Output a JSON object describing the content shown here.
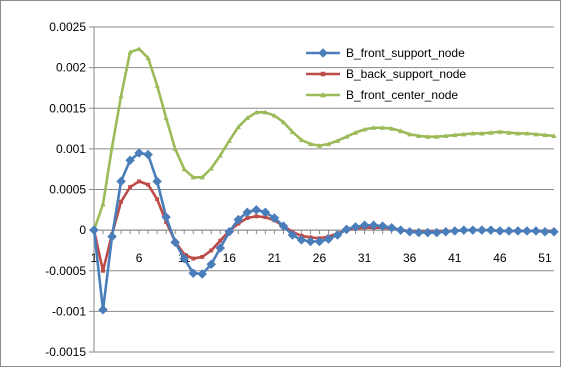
{
  "chart_data": {
    "type": "line",
    "title": "",
    "xlabel": "",
    "ylabel": "",
    "x": [
      1,
      2,
      3,
      4,
      5,
      6,
      7,
      8,
      9,
      10,
      11,
      12,
      13,
      14,
      15,
      16,
      17,
      18,
      19,
      20,
      21,
      22,
      23,
      24,
      25,
      26,
      27,
      28,
      29,
      30,
      31,
      32,
      33,
      34,
      35,
      36,
      37,
      38,
      39,
      40,
      41,
      42,
      43,
      44,
      45,
      46,
      47,
      48,
      49,
      50,
      51,
      52
    ],
    "xticks": [
      1,
      6,
      11,
      16,
      21,
      26,
      31,
      36,
      41,
      46,
      51
    ],
    "xtick_labels": [
      "1",
      "6",
      "11",
      "16",
      "21",
      "26",
      "31",
      "36",
      "41",
      "46",
      "51"
    ],
    "ylim": [
      -0.0015,
      0.0025
    ],
    "yticks": [
      -0.0015,
      -0.001,
      -0.0005,
      0,
      0.0005,
      0.001,
      0.0015,
      0.002,
      0.0025
    ],
    "ytick_labels": [
      "-0.0015",
      "-0.001",
      "-0.0005",
      "0",
      "0.0005",
      "0.001",
      "0.0015",
      "0.002",
      "0.0025"
    ],
    "grid": "horizontal",
    "legend_position": "top-right",
    "series": [
      {
        "name": "B_front_support_node",
        "color": "#4a7ebb",
        "marker": "diamond",
        "values": [
          0,
          -0.00098,
          -8e-05,
          0.0006,
          0.00086,
          0.00095,
          0.00093,
          0.0006,
          0.00016,
          -0.00015,
          -0.00035,
          -0.00053,
          -0.00054,
          -0.00042,
          -0.00022,
          -2e-05,
          0.00013,
          0.00022,
          0.00025,
          0.00022,
          0.00015,
          5e-05,
          -6e-05,
          -0.00012,
          -0.00014,
          -0.00014,
          -0.00011,
          -6e-05,
          1e-05,
          4e-05,
          6e-05,
          6e-05,
          5e-05,
          3e-05,
          0,
          -2e-05,
          -3e-05,
          -3e-05,
          -3e-05,
          -2e-05,
          -1e-05,
          0,
          0,
          0,
          0,
          -1e-05,
          -1e-05,
          -1e-05,
          -1e-05,
          -1e-05,
          -2e-05,
          -2e-05
        ]
      },
      {
        "name": "B_back_support_node",
        "color": "#be4b48",
        "marker": "square",
        "values": [
          0,
          -0.0005,
          -5e-05,
          0.00035,
          0.00053,
          0.0006,
          0.00056,
          0.00038,
          0.0001,
          -0.00014,
          -0.0003,
          -0.00035,
          -0.00033,
          -0.00025,
          -0.00013,
          -1e-05,
          8e-05,
          0.00015,
          0.00017,
          0.00016,
          0.00012,
          5e-05,
          -2e-05,
          -7e-05,
          -9e-05,
          -0.0001,
          -8e-05,
          -4e-05,
          0,
          2e-05,
          3e-05,
          3e-05,
          3e-05,
          2e-05,
          0,
          -1e-05,
          -2e-05,
          -2e-05,
          -2e-05,
          -1e-05,
          -1e-05,
          0,
          0,
          0,
          0,
          -1e-05,
          -1e-05,
          -1e-05,
          -1e-05,
          -1e-05,
          -1e-05,
          -1e-05
        ]
      },
      {
        "name": "B_front_center_node",
        "color": "#9bbb59",
        "marker": "triangle",
        "values": [
          0,
          0.00032,
          0.00102,
          0.00165,
          0.00219,
          0.00223,
          0.00212,
          0.00178,
          0.00138,
          0.001,
          0.00075,
          0.00065,
          0.00065,
          0.00076,
          0.00092,
          0.0011,
          0.00127,
          0.00138,
          0.00145,
          0.00145,
          0.00141,
          0.00133,
          0.00121,
          0.00111,
          0.00106,
          0.00104,
          0.00106,
          0.0011,
          0.00115,
          0.0012,
          0.00124,
          0.00126,
          0.00126,
          0.00125,
          0.00122,
          0.00118,
          0.00116,
          0.00115,
          0.00115,
          0.00116,
          0.00117,
          0.00118,
          0.00119,
          0.00119,
          0.0012,
          0.00121,
          0.0012,
          0.00119,
          0.00119,
          0.00118,
          0.00117,
          0.00116
        ]
      }
    ]
  }
}
